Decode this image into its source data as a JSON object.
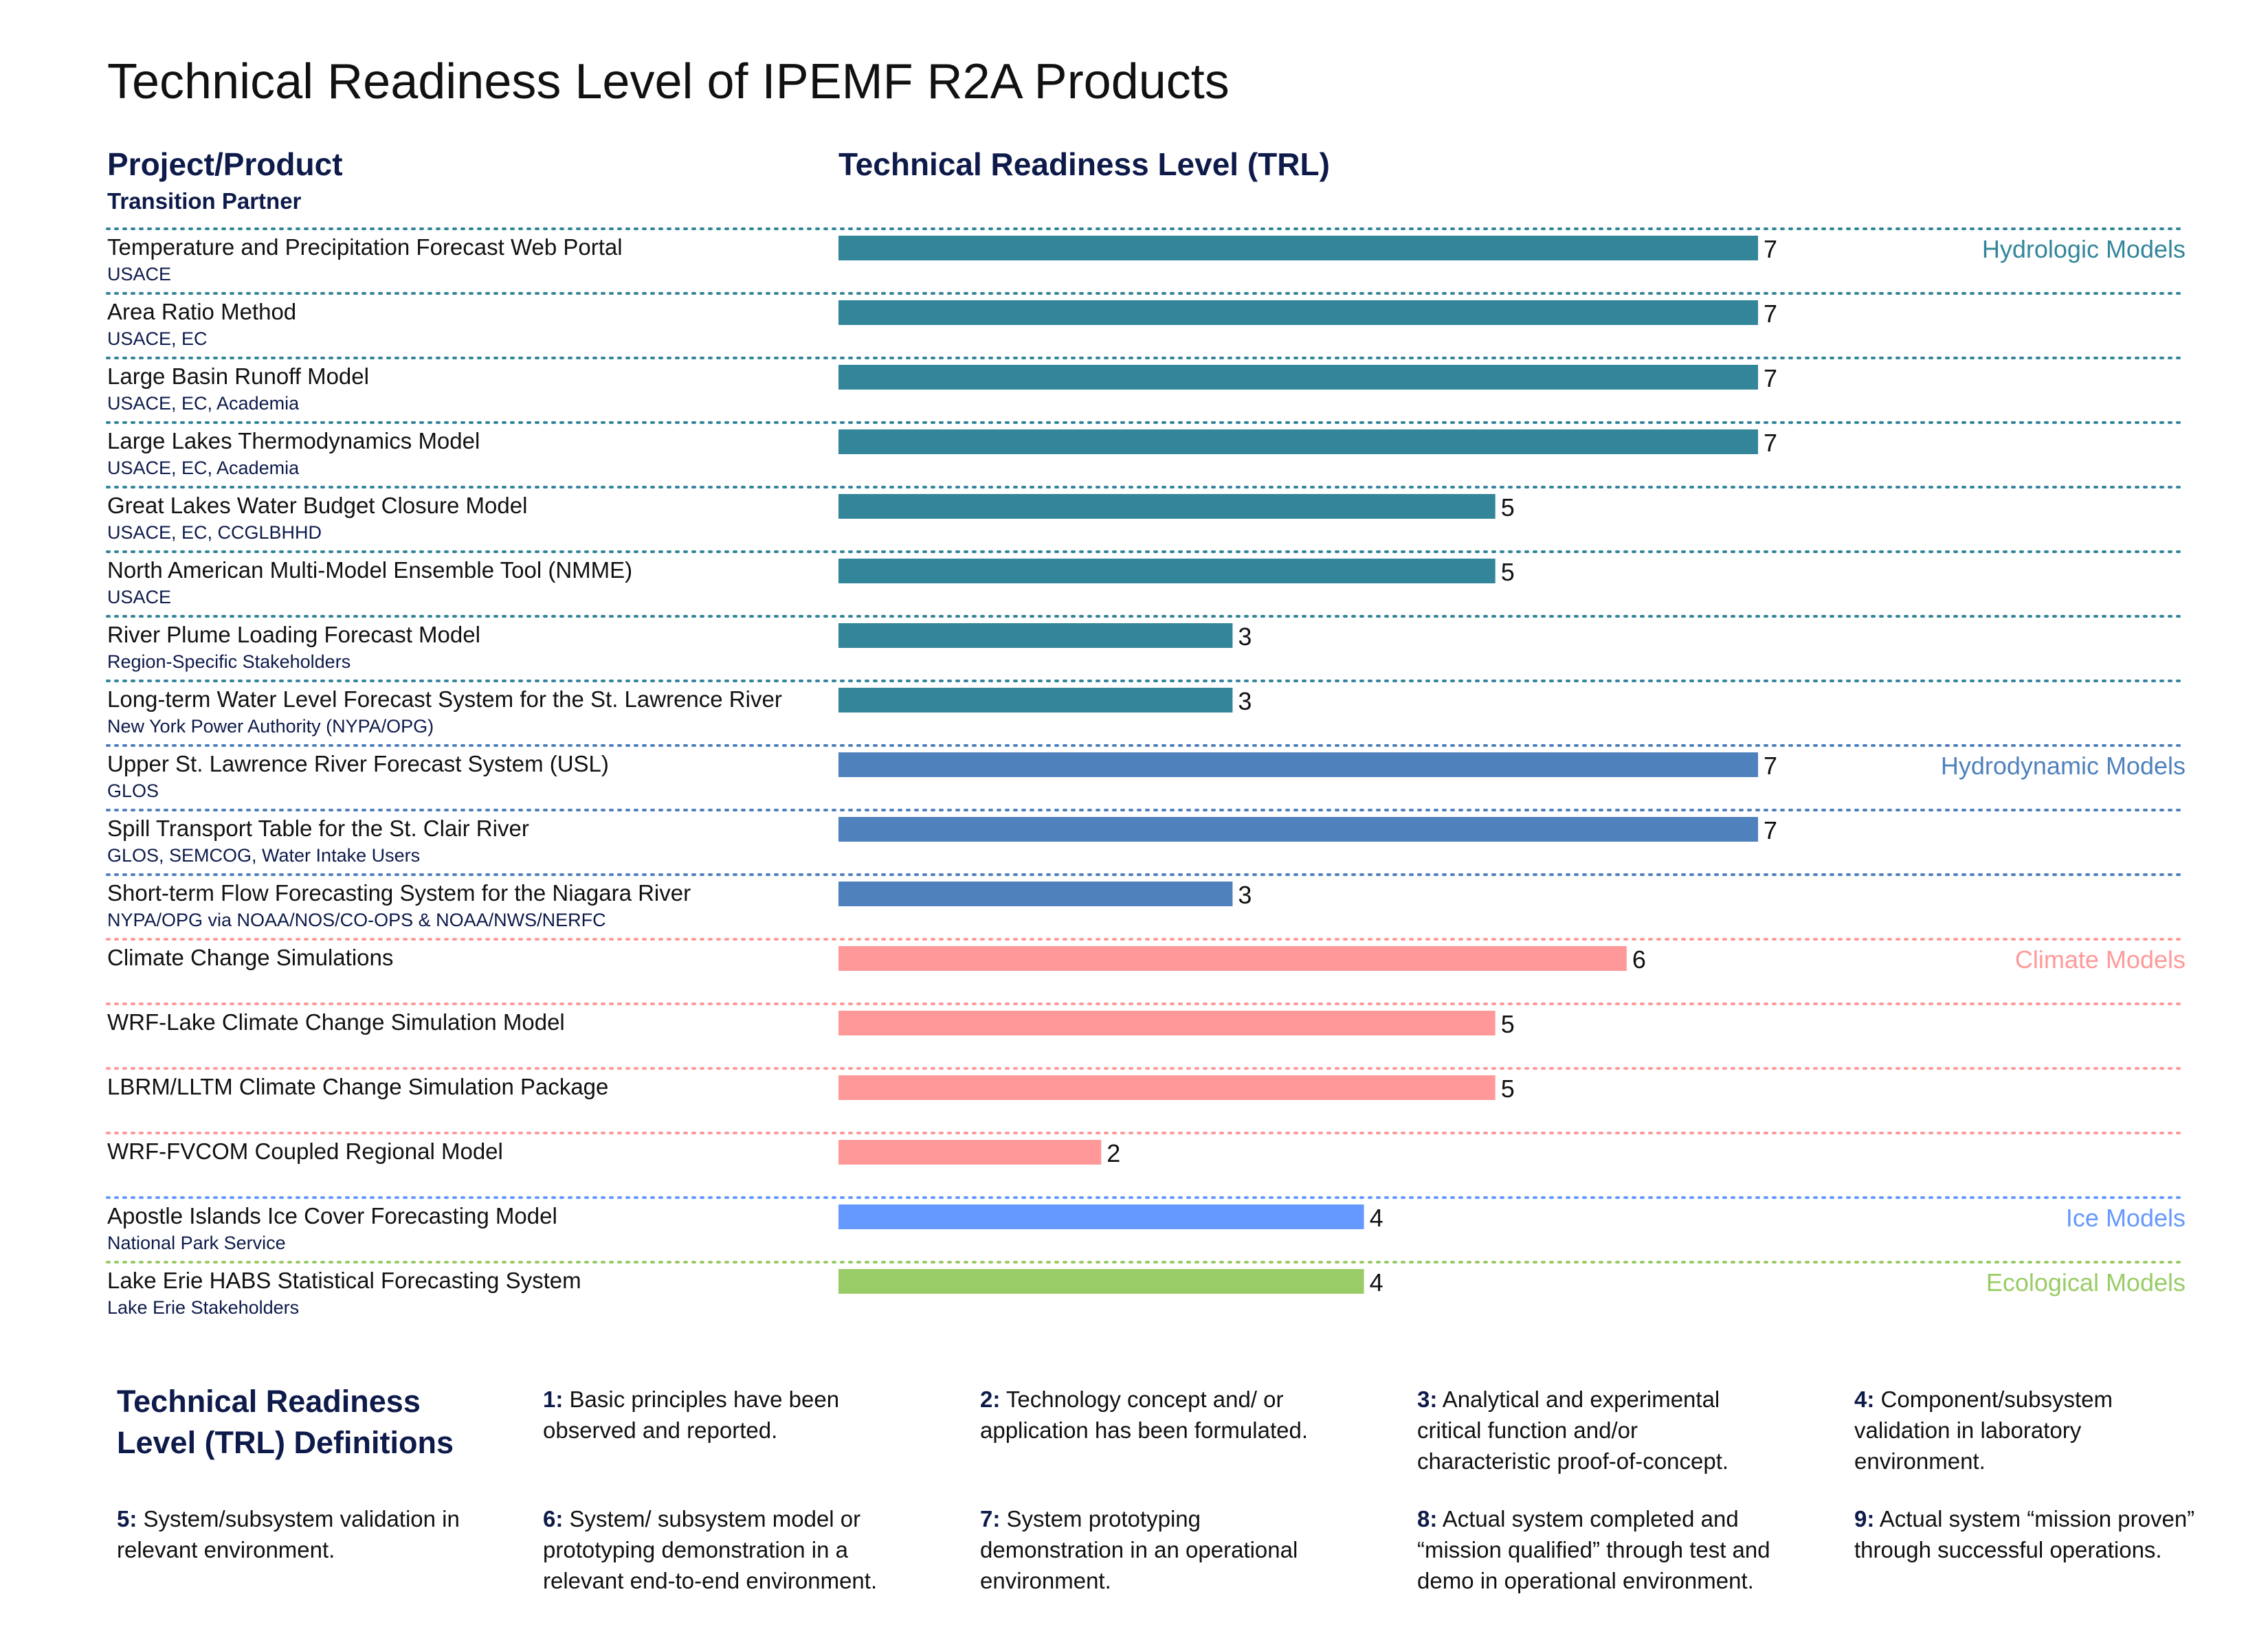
{
  "title": "Technical Readiness Level of IPEMF R2A Products",
  "headers": {
    "project": "Project/Product",
    "partner": "Transition Partner",
    "trl": "Technical Readiness Level (TRL)"
  },
  "chart_data": {
    "type": "bar",
    "orientation": "horizontal",
    "title": "Technical Readiness Level of IPEMF R2A Products",
    "xlabel": "Technical Readiness Level (TRL)",
    "xlim": [
      0,
      7
    ],
    "grid": false,
    "categories": [
      {
        "name": "Hydrologic Models",
        "color": "#33869a"
      },
      {
        "name": "Hydrodynamic Models",
        "color": "#4f81bd"
      },
      {
        "name": "Climate Models",
        "color": "#ff9999"
      },
      {
        "name": "Ice Models",
        "color": "#6699ff"
      },
      {
        "name": "Ecological Models",
        "color": "#99cc66"
      }
    ],
    "rows": [
      {
        "title": "Temperature and Precipitation Forecast Web Portal",
        "partner": "USACE",
        "value": 7,
        "category": "Hydrologic Models"
      },
      {
        "title": "Area Ratio Method",
        "partner": "USACE, EC",
        "value": 7,
        "category": "Hydrologic Models"
      },
      {
        "title": "Large Basin Runoff Model",
        "partner": "USACE, EC, Academia",
        "value": 7,
        "category": "Hydrologic Models"
      },
      {
        "title": "Large Lakes Thermodynamics Model",
        "partner": "USACE, EC, Academia",
        "value": 7,
        "category": "Hydrologic Models"
      },
      {
        "title": "Great Lakes Water Budget Closure Model",
        "partner": "USACE, EC, CCGLBHHD",
        "value": 5,
        "category": "Hydrologic Models"
      },
      {
        "title": "North American Multi-Model Ensemble Tool (NMME)",
        "partner": "USACE",
        "value": 5,
        "category": "Hydrologic Models"
      },
      {
        "title": "River Plume Loading Forecast Model",
        "partner": "Region-Specific Stakeholders",
        "value": 3,
        "category": "Hydrologic Models"
      },
      {
        "title": "Long-term Water Level Forecast System for the St. Lawrence River",
        "partner": "New York Power Authority (NYPA/OPG)",
        "value": 3,
        "category": "Hydrologic Models"
      },
      {
        "title": "Upper St. Lawrence River Forecast System (USL)",
        "partner": "GLOS",
        "value": 7,
        "category": "Hydrodynamic Models"
      },
      {
        "title": "Spill Transport Table for the St. Clair River",
        "partner": "GLOS, SEMCOG, Water Intake Users",
        "value": 7,
        "category": "Hydrodynamic Models"
      },
      {
        "title": "Short-term Flow Forecasting System for the Niagara River",
        "partner": "NYPA/OPG via NOAA/NOS/CO-OPS & NOAA/NWS/NERFC",
        "value": 3,
        "category": "Hydrodynamic Models"
      },
      {
        "title": "Climate Change Simulations",
        "partner": "",
        "value": 6,
        "category": "Climate Models"
      },
      {
        "title": "WRF-Lake Climate Change Simulation Model",
        "partner": "",
        "value": 5,
        "category": "Climate Models"
      },
      {
        "title": "LBRM/LLTM Climate Change Simulation Package",
        "partner": "",
        "value": 5,
        "category": "Climate Models"
      },
      {
        "title": "WRF-FVCOM Coupled Regional Model",
        "partner": "",
        "value": 2,
        "category": "Climate Models"
      },
      {
        "title": "Apostle Islands Ice Cover Forecasting Model",
        "partner": "National Park Service",
        "value": 4,
        "category": "Ice Models"
      },
      {
        "title": "Lake Erie HABS Statistical Forecasting System",
        "partner": "Lake Erie Stakeholders",
        "value": 4,
        "category": "Ecological Models"
      }
    ],
    "category_labels_at_rows": [
      0,
      8,
      11,
      15,
      16
    ]
  },
  "definitions": {
    "title": "Technical Readiness Level (TRL) Definitions",
    "items": [
      {
        "num": "1:",
        "text": "Basic principles have been observed and reported."
      },
      {
        "num": "2:",
        "text": "Technology concept and/ or application has been formulated."
      },
      {
        "num": "3:",
        "text": "Analytical and experimental critical function and/or characteristic proof-of-concept."
      },
      {
        "num": "4:",
        "text": "Component/subsystem validation in laboratory environment."
      },
      {
        "num": "5:",
        "text": "System/subsystem validation in relevant environment."
      },
      {
        "num": "6:",
        "text": "System/ subsystem model or prototyping demonstration in a relevant end-to-end environment."
      },
      {
        "num": "7:",
        "text": "System prototyping demonstration in an operational environment."
      },
      {
        "num": "8:",
        "text": "Actual system completed and “mission qualified” through test and demo in operational environment."
      },
      {
        "num": "9:",
        "text": "Actual system “mission proven” through successful operations."
      }
    ]
  }
}
